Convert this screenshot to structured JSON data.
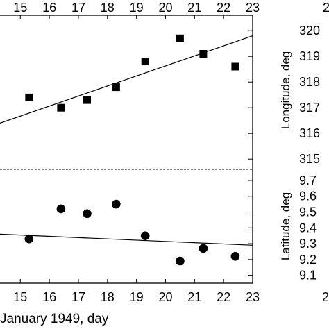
{
  "chart_data": [
    {
      "type": "scatter",
      "panel": "top",
      "xlabel": "",
      "ylabel": "Longitude, deg",
      "xlim": [
        14.3,
        23
      ],
      "ylim": [
        314.6,
        320.6
      ],
      "xticks": [
        "15",
        "16",
        "17",
        "18",
        "19",
        "20",
        "21",
        "22",
        "23"
      ],
      "yticks": [
        "315",
        "316",
        "317",
        "318",
        "319",
        "320"
      ],
      "top_axis_ticks": [
        "15",
        "16",
        "17",
        "18",
        "19",
        "20",
        "21",
        "22",
        "23",
        "2"
      ],
      "right_extra_tick": "2",
      "marker": "square",
      "series": [
        {
          "x": [
            15.3,
            16.4,
            17.3,
            18.3,
            19.3,
            20.5,
            21.3,
            22.4
          ],
          "y": [
            317.4,
            317.0,
            317.3,
            317.8,
            318.8,
            319.7,
            319.1,
            318.6
          ]
        }
      ],
      "fit_line": {
        "x": [
          14.3,
          23
        ],
        "y": [
          316.4,
          319.8
        ]
      }
    },
    {
      "type": "scatter",
      "panel": "bottom",
      "xlabel": "January 1949, day",
      "ylabel": "Latitude, deg",
      "xlim": [
        14.3,
        23
      ],
      "ylim": [
        9.05,
        9.77
      ],
      "xticks": [
        "15",
        "16",
        "17",
        "18",
        "19",
        "20",
        "21",
        "22",
        "23"
      ],
      "yticks": [
        "9.1",
        "9.2",
        "9.3",
        "9.4",
        "9.5",
        "9.6",
        "9.7"
      ],
      "marker": "circle",
      "series": [
        {
          "x": [
            15.3,
            16.4,
            17.3,
            18.3,
            19.3,
            20.5,
            21.3,
            22.4
          ],
          "y": [
            9.33,
            9.52,
            9.49,
            9.55,
            9.35,
            9.19,
            9.27,
            9.22
          ]
        }
      ],
      "fit_line": {
        "x": [
          14.3,
          23
        ],
        "y": [
          9.36,
          9.29
        ]
      }
    }
  ]
}
